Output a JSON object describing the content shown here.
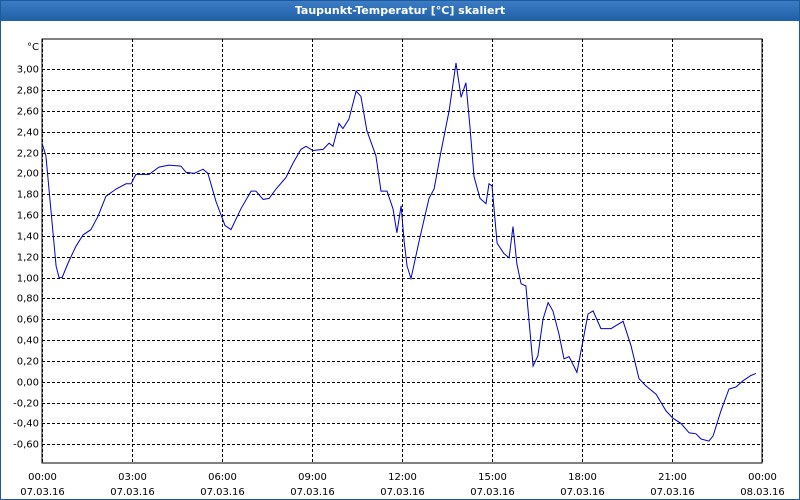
{
  "chart_data": {
    "type": "line",
    "title": "Taupunkt-Temperatur [°C] skaliert",
    "y_unit": "°C",
    "xlim": [
      0,
      24
    ],
    "ylim": [
      -0.78,
      3.29
    ],
    "xticks": [
      {
        "value": 0,
        "label": "00:00"
      },
      {
        "value": 3,
        "label": "03:00"
      },
      {
        "value": 6,
        "label": "06:00"
      },
      {
        "value": 9,
        "label": "09:00"
      },
      {
        "value": 12,
        "label": "12:00"
      },
      {
        "value": 15,
        "label": "15:00"
      },
      {
        "value": 18,
        "label": "18:00"
      },
      {
        "value": 21,
        "label": "21:00"
      },
      {
        "value": 24,
        "label": "00:00"
      }
    ],
    "xtick_dates": [
      "07.03.16",
      "07.03.16",
      "07.03.16",
      "07.03.16",
      "07.03.16",
      "07.03.16",
      "07.03.16",
      "07.03.16",
      "08.03.16"
    ],
    "yticks": [
      {
        "value": -0.6,
        "label": "-0,60"
      },
      {
        "value": -0.4,
        "label": "-0,40"
      },
      {
        "value": -0.2,
        "label": "-0,20"
      },
      {
        "value": 0,
        "label": "0,00"
      },
      {
        "value": 0.2,
        "label": "0,20"
      },
      {
        "value": 0.4,
        "label": "0,40"
      },
      {
        "value": 0.6,
        "label": "0,60"
      },
      {
        "value": 0.8,
        "label": "0,80"
      },
      {
        "value": 1,
        "label": "1,00"
      },
      {
        "value": 1.2,
        "label": "1,20"
      },
      {
        "value": 1.4,
        "label": "1,40"
      },
      {
        "value": 1.6,
        "label": "1,60"
      },
      {
        "value": 1.8,
        "label": "1,80"
      },
      {
        "value": 2,
        "label": "2,00"
      },
      {
        "value": 2.2,
        "label": "2,20"
      },
      {
        "value": 2.4,
        "label": "2,40"
      },
      {
        "value": 2.6,
        "label": "2,60"
      },
      {
        "value": 2.8,
        "label": "2,80"
      },
      {
        "value": 3,
        "label": "3,00"
      }
    ],
    "grid": true,
    "x": [
      0,
      0.13,
      0.3,
      0.47,
      0.57,
      0.67,
      0.87,
      1.13,
      1.37,
      1.63,
      1.87,
      2.13,
      2.47,
      2.8,
      2.97,
      3.13,
      3.57,
      3.9,
      4.23,
      4.63,
      4.8,
      5.07,
      5.37,
      5.53,
      5.8,
      6.1,
      6.3,
      6.63,
      6.97,
      7.13,
      7.37,
      7.57,
      7.8,
      8.13,
      8.37,
      8.63,
      8.8,
      9.03,
      9.37,
      9.57,
      9.7,
      9.9,
      10.03,
      10.23,
      10.47,
      10.63,
      10.83,
      11.13,
      11.3,
      11.5,
      11.7,
      11.83,
      11.97,
      12.07,
      12.17,
      12.3,
      12.57,
      12.9,
      13.07,
      13.3,
      13.57,
      13.8,
      13.97,
      14.13,
      14.27,
      14.4,
      14.6,
      14.8,
      14.9,
      15.0,
      15.17,
      15.4,
      15.57,
      15.7,
      15.83,
      15.97,
      16.13,
      16.37,
      16.53,
      16.7,
      16.87,
      17.03,
      17.23,
      17.4,
      17.57,
      17.83,
      18.03,
      18.2,
      18.37,
      18.63,
      18.97,
      19.37,
      19.63,
      19.9,
      20.13,
      20.47,
      20.8,
      21.03,
      21.3,
      21.57,
      21.8,
      21.97,
      22.23,
      22.37,
      22.63,
      22.9,
      23.13,
      23.37,
      23.63,
      23.8
    ],
    "series": [
      {
        "color": "#0000c8",
        "values": [
          2.29,
          2.17,
          1.64,
          1.11,
          1.0,
          1.0,
          1.14,
          1.3,
          1.41,
          1.46,
          1.59,
          1.78,
          1.85,
          1.9,
          1.9,
          1.99,
          1.99,
          2.06,
          2.08,
          2.07,
          2.01,
          2.0,
          2.04,
          2.0,
          1.73,
          1.5,
          1.46,
          1.66,
          1.83,
          1.83,
          1.75,
          1.76,
          1.85,
          1.96,
          2.1,
          2.23,
          2.26,
          2.22,
          2.23,
          2.29,
          2.26,
          2.48,
          2.43,
          2.52,
          2.79,
          2.74,
          2.41,
          2.17,
          1.83,
          1.83,
          1.66,
          1.43,
          1.69,
          1.35,
          1.11,
          0.99,
          1.35,
          1.76,
          1.85,
          2.21,
          2.6,
          3.06,
          2.73,
          2.87,
          2.43,
          1.97,
          1.76,
          1.71,
          1.9,
          1.88,
          1.33,
          1.23,
          1.19,
          1.49,
          1.13,
          0.94,
          0.92,
          0.15,
          0.25,
          0.6,
          0.76,
          0.68,
          0.46,
          0.22,
          0.24,
          0.09,
          0.39,
          0.65,
          0.68,
          0.51,
          0.51,
          0.58,
          0.35,
          0.03,
          -0.04,
          -0.12,
          -0.28,
          -0.35,
          -0.4,
          -0.49,
          -0.5,
          -0.55,
          -0.57,
          -0.52,
          -0.28,
          -0.07,
          -0.05,
          0.01,
          0.06,
          0.08
        ]
      }
    ]
  }
}
